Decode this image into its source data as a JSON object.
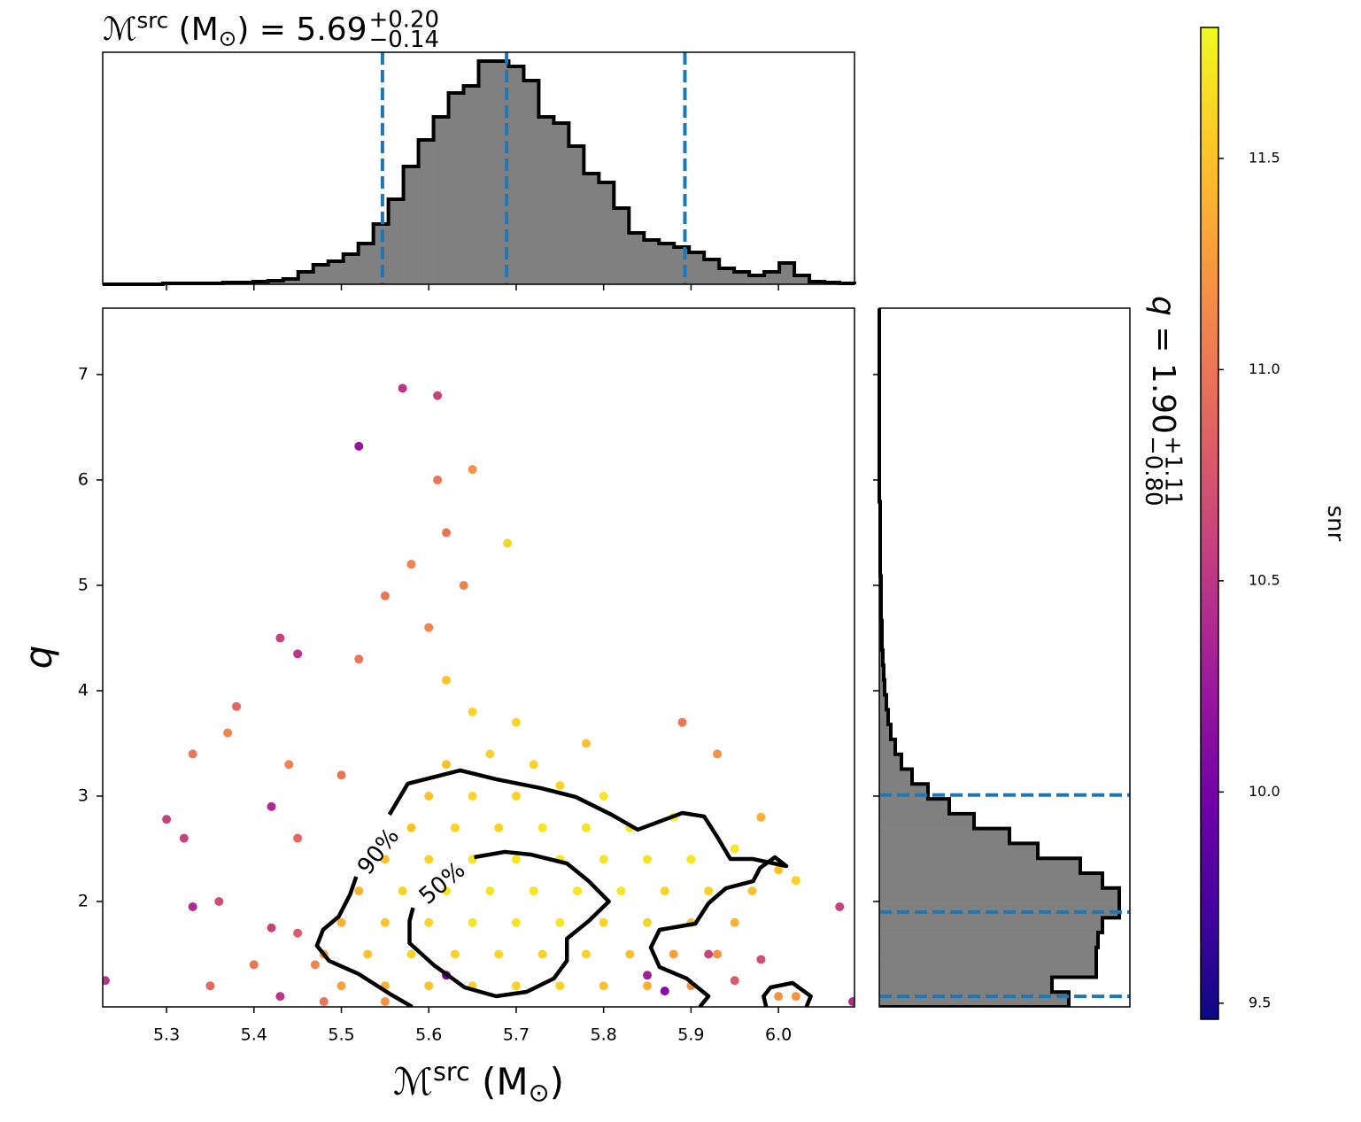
{
  "chart_data": [
    {
      "type": "histogram",
      "orientation": "vertical",
      "title": {
        "symbol": "ℳ",
        "sup": "src",
        "unit_open": " (M",
        "unit_sub": "⊙",
        "rest": ") = 5.69",
        "plus": "+0.20",
        "minus": "−0.14"
      },
      "bins": [
        5.227,
        5.2442,
        5.2614,
        5.2786,
        5.2958,
        5.313,
        5.3302,
        5.3474,
        5.3646,
        5.3818,
        5.399,
        5.4162,
        5.4334,
        5.4506,
        5.4678,
        5.485,
        5.5022,
        5.5194,
        5.5366,
        5.5538,
        5.571,
        5.5882,
        5.6054,
        5.6226,
        5.6398,
        5.657,
        5.6742,
        5.6914,
        5.7086,
        5.7258,
        5.743,
        5.7602,
        5.7774,
        5.7946,
        5.8118,
        5.829,
        5.8462,
        5.8634,
        5.8806,
        5.8978,
        5.915,
        5.9322,
        5.9494,
        5.9666,
        5.9838,
        6.001,
        6.0182,
        6.0354,
        6.0526,
        6.0698,
        6.087
      ],
      "counts": [
        0,
        0,
        0,
        0,
        1,
        1,
        1,
        1,
        2,
        2,
        3,
        4,
        6,
        14,
        22,
        26,
        34,
        46,
        68,
        96,
        133,
        163,
        189,
        216,
        224,
        252,
        252,
        246,
        230,
        189,
        182,
        156,
        125,
        115,
        86,
        58,
        50,
        46,
        42,
        36,
        28,
        18,
        14,
        10,
        14,
        24,
        10,
        3,
        2,
        1
      ],
      "ylim": [
        0,
        262
      ],
      "color": "#808080",
      "edge_color": "#000000",
      "quantiles": [
        5.547,
        5.689,
        5.893
      ],
      "quantile_color": "#1f77b4"
    },
    {
      "type": "scatter",
      "xlabel": {
        "symbol": "ℳ",
        "sup": "src",
        "unit_open": " (M",
        "unit_sub": "⊙",
        "rest": ")"
      },
      "ylabel": "q",
      "xlim": [
        5.227,
        6.087
      ],
      "ylim": [
        1.0,
        7.63
      ],
      "xticks": [
        5.3,
        5.4,
        5.5,
        5.6,
        5.7,
        5.8,
        5.9,
        {
          "value": 6,
          "label": "6.0"
        }
      ],
      "yticks": [
        2,
        3,
        4,
        5,
        6,
        7
      ],
      "x": [
        5.5,
        5.55,
        5.6,
        5.65,
        5.7,
        5.75,
        5.8,
        5.85,
        5.9,
        5.48,
        5.53,
        5.58,
        5.63,
        5.68,
        5.73,
        5.78,
        5.83,
        5.88,
        5.93,
        5.5,
        5.55,
        5.6,
        5.65,
        5.7,
        5.75,
        5.8,
        5.85,
        5.9,
        5.95,
        5.52,
        5.57,
        5.62,
        5.67,
        5.72,
        5.77,
        5.82,
        5.87,
        5.92,
        5.97,
        6.02,
        5.55,
        5.6,
        5.65,
        5.7,
        5.75,
        5.8,
        5.85,
        5.9,
        5.95,
        5.58,
        5.63,
        5.68,
        5.73,
        5.78,
        5.83,
        5.88,
        5.6,
        5.65,
        5.7,
        5.75,
        5.8,
        5.62,
        5.67,
        5.72,
        5.78,
        5.65,
        5.7,
        5.62,
        5.6,
        5.64,
        5.62,
        5.61,
        5.65,
        5.61,
        5.57,
        5.52,
        5.69,
        5.43,
        5.45,
        5.38,
        5.33,
        5.3,
        5.32,
        5.36,
        5.42,
        5.45,
        5.4,
        5.35,
        5.43,
        5.23,
        5.33,
        5.45,
        5.47,
        5.98,
        5.95,
        5.92,
        6.0,
        6.02,
        6.07,
        6.085,
        5.89,
        5.93,
        5.98,
        6.0,
        5.85,
        5.87,
        5.62,
        5.5,
        5.44,
        5.37,
        5.52,
        5.55,
        5.58,
        5.42,
        5.48,
        5.55
      ],
      "y": [
        1.2,
        1.2,
        1.2,
        1.2,
        1.2,
        1.2,
        1.2,
        1.2,
        1.2,
        1.5,
        1.5,
        1.5,
        1.5,
        1.5,
        1.5,
        1.5,
        1.5,
        1.5,
        1.5,
        1.8,
        1.8,
        1.8,
        1.8,
        1.8,
        1.8,
        1.8,
        1.8,
        1.8,
        1.8,
        2.1,
        2.1,
        2.1,
        2.1,
        2.1,
        2.1,
        2.1,
        2.1,
        2.1,
        2.1,
        2.2,
        2.4,
        2.4,
        2.4,
        2.4,
        2.4,
        2.4,
        2.4,
        2.4,
        2.5,
        2.7,
        2.7,
        2.7,
        2.7,
        2.7,
        2.7,
        2.8,
        3.0,
        3.0,
        3.0,
        3.1,
        3.0,
        3.3,
        3.4,
        3.3,
        3.5,
        3.8,
        3.7,
        4.1,
        4.6,
        5.0,
        5.5,
        6.0,
        6.1,
        6.8,
        6.87,
        6.32,
        5.4,
        4.5,
        4.35,
        3.85,
        3.4,
        2.78,
        2.6,
        2.0,
        2.9,
        1.7,
        1.4,
        1.2,
        1.1,
        1.25,
        1.95,
        2.6,
        1.4,
        1.45,
        1.25,
        1.5,
        1.1,
        1.1,
        1.95,
        1.05,
        3.7,
        3.4,
        2.8,
        2.3,
        1.3,
        1.15,
        1.3,
        3.2,
        3.3,
        3.6,
        4.3,
        4.9,
        5.2,
        1.75,
        1.05,
        1.05
      ],
      "snr": [
        11.3,
        11.4,
        11.5,
        11.6,
        11.6,
        11.6,
        11.5,
        11.4,
        11.2,
        11.3,
        11.5,
        11.6,
        11.6,
        11.6,
        11.6,
        11.6,
        11.5,
        11.3,
        11.2,
        11.4,
        11.5,
        11.6,
        11.7,
        11.7,
        11.7,
        11.6,
        11.6,
        11.5,
        11.4,
        11.4,
        11.6,
        11.7,
        11.7,
        11.7,
        11.7,
        11.7,
        11.6,
        11.6,
        11.5,
        11.6,
        11.5,
        11.6,
        11.7,
        11.7,
        11.7,
        11.7,
        11.7,
        11.7,
        11.7,
        11.5,
        11.6,
        11.6,
        11.7,
        11.7,
        11.7,
        11.8,
        11.5,
        11.6,
        11.6,
        11.6,
        11.7,
        11.5,
        11.6,
        11.6,
        11.5,
        11.6,
        11.6,
        11.5,
        11.1,
        11.1,
        11.0,
        11.0,
        11.2,
        10.6,
        10.5,
        10.2,
        11.6,
        10.6,
        10.5,
        10.9,
        11.0,
        10.6,
        10.6,
        10.7,
        10.4,
        10.8,
        11.0,
        10.9,
        10.5,
        10.5,
        10.4,
        10.9,
        11.1,
        10.7,
        10.8,
        10.6,
        11.2,
        11.2,
        10.6,
        10.4,
        11.0,
        11.2,
        11.4,
        11.5,
        10.3,
        10.1,
        10.0,
        11.0,
        11.1,
        11.1,
        11.0,
        11.0,
        11.1,
        10.6,
        11.0,
        11.2
      ],
      "contours": [
        {
          "label": "90%",
          "x": [
            5.555,
            5.576,
            5.616,
            5.636,
            5.677,
            5.728,
            5.768,
            5.809,
            5.839,
            5.89,
            5.915,
            5.93,
            5.945,
            5.971,
            6.009,
            5.996,
            5.979,
            5.971,
            5.94,
            5.92,
            5.905,
            5.864,
            5.854,
            5.864,
            5.895,
            5.92,
            5.91,
            null,
            5.581,
            5.555,
            5.52,
            5.486,
            5.472,
            5.479,
            5.497,
            5.51,
            5.517
          ],
          "y": [
            2.824,
            3.118,
            3.202,
            3.244,
            3.16,
            3.076,
            2.992,
            2.824,
            2.681,
            2.84,
            2.807,
            2.613,
            2.403,
            2.403,
            2.336,
            2.42,
            2.319,
            2.193,
            2.126,
            1.983,
            1.79,
            1.731,
            1.563,
            1.378,
            1.269,
            1.101,
            1.0,
            null,
            1.0,
            1.126,
            1.311,
            1.437,
            1.58,
            1.731,
            1.857,
            2.067,
            2.235
          ]
        },
        {
          "label": "50%",
          "x": [
            5.652,
            5.687,
            5.717,
            5.758,
            5.783,
            5.806,
            5.783,
            5.758,
            5.758,
            5.743,
            5.712,
            5.677,
            5.641,
            5.606,
            5.578,
            5.578,
            5.582
          ],
          "y": [
            2.42,
            2.471,
            2.445,
            2.361,
            2.193,
            2.0,
            1.815,
            1.647,
            1.437,
            1.269,
            1.143,
            1.101,
            1.185,
            1.395,
            1.605,
            1.815,
            1.941
          ]
        },
        {
          "x": [
            5.986,
            5.983,
            5.991,
            6.016,
            6.037,
            6.032
          ],
          "y": [
            1.0,
            1.101,
            1.185,
            1.227,
            1.101,
            1.0
          ]
        }
      ],
      "contour_color": "#000000",
      "colorbar": {
        "label": "snr",
        "lim": [
          9.462,
          11.81
        ],
        "ticks": [
          9.5,
          {
            "value": 10,
            "label": "10.0"
          },
          10.5,
          {
            "value": 11,
            "label": "11.0"
          },
          11.5
        ],
        "colormap": [
          "#0d0887",
          "#46039f",
          "#7201a8",
          "#9c179e",
          "#bd3786",
          "#d8576b",
          "#ed7953",
          "#fb9f3a",
          "#fdca26",
          "#f0f921"
        ]
      }
    },
    {
      "type": "histogram",
      "orientation": "horizontal",
      "title": {
        "symbol": "q",
        "rest": " = 1.90",
        "plus": "+1.11",
        "minus": "−0.80"
      },
      "bins": [
        1.0,
        1.141,
        1.282,
        1.423,
        1.564,
        1.705,
        1.846,
        1.987,
        2.128,
        2.269,
        2.41,
        2.551,
        2.692,
        2.833,
        2.974,
        3.115,
        3.256,
        3.397,
        3.538,
        3.679,
        3.82,
        3.961,
        4.102,
        4.243,
        4.384,
        4.525,
        4.666,
        4.807,
        4.948,
        5.089,
        5.23,
        5.371,
        5.512,
        5.653,
        5.794,
        5.935,
        6.076,
        6.217,
        6.358,
        6.499,
        6.64,
        6.781,
        6.922,
        7.063,
        7.204,
        7.345,
        7.486,
        7.627
      ],
      "counts": [
        214,
        195,
        245,
        245,
        247,
        252,
        271,
        271,
        252,
        227,
        179,
        147,
        107,
        79,
        55,
        37,
        25,
        18,
        13,
        10,
        8,
        6,
        5,
        4,
        3,
        3,
        2,
        2,
        2,
        1,
        1,
        1,
        1,
        1,
        0,
        0,
        0,
        0,
        0,
        0,
        0,
        0,
        0,
        0,
        0,
        0,
        0
      ],
      "xlim": [
        0,
        283
      ],
      "color": "#808080",
      "edge_color": "#000000",
      "quantiles": [
        1.1,
        1.9,
        3.01
      ],
      "quantile_color": "#1f77b4"
    }
  ]
}
